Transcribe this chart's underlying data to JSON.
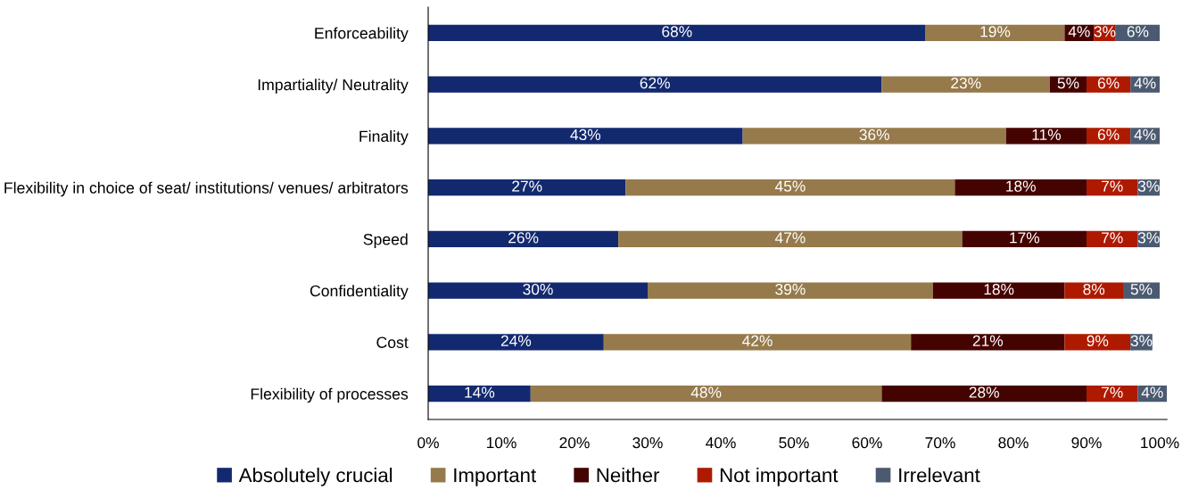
{
  "chart_data": {
    "type": "bar",
    "orientation": "horizontal",
    "stacked": true,
    "categories": [
      "Enforceability",
      "Impartiality/ Neutrality",
      "Finality",
      "Flexibility in choice of seat/ institutions/ venues/ arbitrators",
      "Speed",
      "Confidentiality",
      "Cost",
      "Flexibility of processes"
    ],
    "series": [
      {
        "name": "Absolutely crucial",
        "color": "#13296f",
        "values": [
          68,
          62,
          43,
          27,
          26,
          30,
          24,
          14
        ],
        "value_labels": [
          "68%",
          "62%",
          "43%",
          "27%",
          "26%",
          "30%",
          "24%",
          "14%"
        ]
      },
      {
        "name": "Important",
        "color": "#967a4c",
        "values": [
          19,
          23,
          36,
          45,
          47,
          39,
          42,
          48
        ],
        "value_labels": [
          "19%",
          "23%",
          "36%",
          "45%",
          "47%",
          "39%",
          "42%",
          "48%"
        ]
      },
      {
        "name": "Neither",
        "color": "#450300",
        "values": [
          4,
          5,
          11,
          18,
          17,
          18,
          21,
          28
        ],
        "value_labels": [
          "4%",
          "5%",
          "11%",
          "18%",
          "17%",
          "18%",
          "21%",
          "28%"
        ]
      },
      {
        "name": "Not important",
        "color": "#ae1a00",
        "values": [
          3,
          6,
          6,
          7,
          7,
          8,
          9,
          7
        ],
        "value_labels": [
          "3%",
          "6%",
          "6%",
          "7%",
          "7%",
          "8%",
          "9%",
          "7%"
        ]
      },
      {
        "name": "Irrelevant",
        "color": "#4b5a70",
        "values": [
          6,
          4,
          4,
          3,
          3,
          5,
          3,
          4
        ],
        "value_labels": [
          "6%",
          "4%",
          "4%",
          "3%",
          "3%",
          "5%",
          "3%",
          "4%"
        ]
      }
    ],
    "xlim": [
      0,
      101
    ],
    "xticks": [
      {
        "value": 0,
        "label": "0%"
      },
      {
        "value": 10,
        "label": "10%"
      },
      {
        "value": 20,
        "label": "20%"
      },
      {
        "value": 30,
        "label": "30%"
      },
      {
        "value": 40,
        "label": "40%"
      },
      {
        "value": 50,
        "label": "50%"
      },
      {
        "value": 60,
        "label": "60%"
      },
      {
        "value": 70,
        "label": "70%"
      },
      {
        "value": 80,
        "label": "80%"
      },
      {
        "value": 90,
        "label": "90%"
      },
      {
        "value": 100,
        "label": "100%"
      }
    ],
    "grid": false,
    "legend": "bottom"
  }
}
